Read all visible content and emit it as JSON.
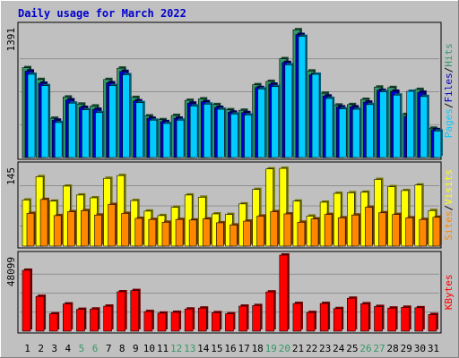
{
  "chart_data": {
    "type": "bar",
    "title": "Daily usage for March 2022",
    "days": [
      "1",
      "2",
      "3",
      "4",
      "5",
      "6",
      "7",
      "8",
      "9",
      "10",
      "11",
      "12",
      "13",
      "14",
      "15",
      "16",
      "17",
      "18",
      "19",
      "20",
      "21",
      "22",
      "23",
      "24",
      "25",
      "26",
      "27",
      "28",
      "29",
      "30",
      "31"
    ],
    "weekend_days": [
      "5",
      "6",
      "12",
      "13",
      "19",
      "20",
      "26",
      "27"
    ],
    "panels": [
      {
        "id": "top",
        "max_label": "1391",
        "ymax": 1391,
        "legend": [
          {
            "text": "Pages",
            "color": "#00ccff"
          },
          {
            "text": "/",
            "color": "#000000"
          },
          {
            "text": "Files",
            "color": "#0000cc"
          },
          {
            "text": "/",
            "color": "#000000"
          },
          {
            "text": "Hits",
            "color": "#339966"
          }
        ],
        "series": [
          {
            "key": "hits",
            "color": "#339966",
            "values": [
              950,
              825,
              415,
              640,
              565,
              545,
              825,
              945,
              635,
              440,
              400,
              445,
              605,
              620,
              560,
              505,
              500,
              770,
              805,
              1045,
              1351,
              915,
              680,
              555,
              560,
              615,
              745,
              740,
              455,
              720,
              310
            ]
          },
          {
            "key": "files",
            "color": "#0000cc",
            "values": [
              915,
              785,
              395,
              610,
              530,
              510,
              790,
              910,
              600,
              415,
              380,
              415,
              575,
              590,
              530,
              480,
              475,
              740,
              775,
              1005,
              1301,
              875,
              650,
              535,
              535,
              585,
              710,
              700,
              435,
              690,
              295
            ]
          },
          {
            "key": "pages",
            "color": "#00ccff",
            "values": [
              880,
              760,
              370,
              575,
              505,
              475,
              760,
              875,
              580,
              395,
              360,
              395,
              545,
              565,
              510,
              460,
              450,
              725,
              750,
              980,
              1281,
              880,
              625,
              515,
              510,
              560,
              695,
              660,
              700,
              645,
              280
            ]
          }
        ]
      },
      {
        "id": "mid",
        "max_label": "145",
        "ymax": 145,
        "legend": [
          {
            "text": "Sites",
            "color": "#ff8800"
          },
          {
            "text": "/",
            "color": "#000000"
          },
          {
            "text": "Visits",
            "color": "#ffff00"
          }
        ],
        "series": [
          {
            "key": "visits",
            "color": "#ffff00",
            "values": [
              83,
              125,
              81,
              108,
              92,
              87,
              122,
              127,
              82,
              63,
              55,
              70,
              92,
              88,
              58,
              57,
              76,
              102,
              139,
              140,
              81,
              54,
              79,
              95,
              96,
              97,
              120,
              107,
              100,
              110,
              64
            ]
          },
          {
            "key": "sites",
            "color": "#ff8800",
            "values": [
              59,
              84,
              55,
              62,
              64,
              56,
              75,
              59,
              50,
              48,
              43,
              48,
              47,
              49,
              42,
              38,
              45,
              54,
              62,
              58,
              43,
              49,
              57,
              51,
              56,
              70,
              60,
              57,
              51,
              48,
              52
            ]
          }
        ]
      },
      {
        "id": "bot",
        "max_label": "48099",
        "ymax": 48099,
        "legend": [
          {
            "text": "KBytes",
            "color": "#ff0000"
          }
        ],
        "series": [
          {
            "key": "kbytes",
            "color": "#ff0000",
            "values": [
              38500,
              22000,
              11000,
              17200,
              13800,
              14000,
              15800,
              24900,
              25700,
              12400,
              11400,
              11900,
              14000,
              14600,
              11700,
              11000,
              15800,
              16200,
              24800,
              48099,
              17500,
              11800,
              17500,
              14300,
              20800,
              17300,
              15600,
              14600,
              15100,
              14800,
              10500
            ]
          }
        ]
      }
    ]
  }
}
